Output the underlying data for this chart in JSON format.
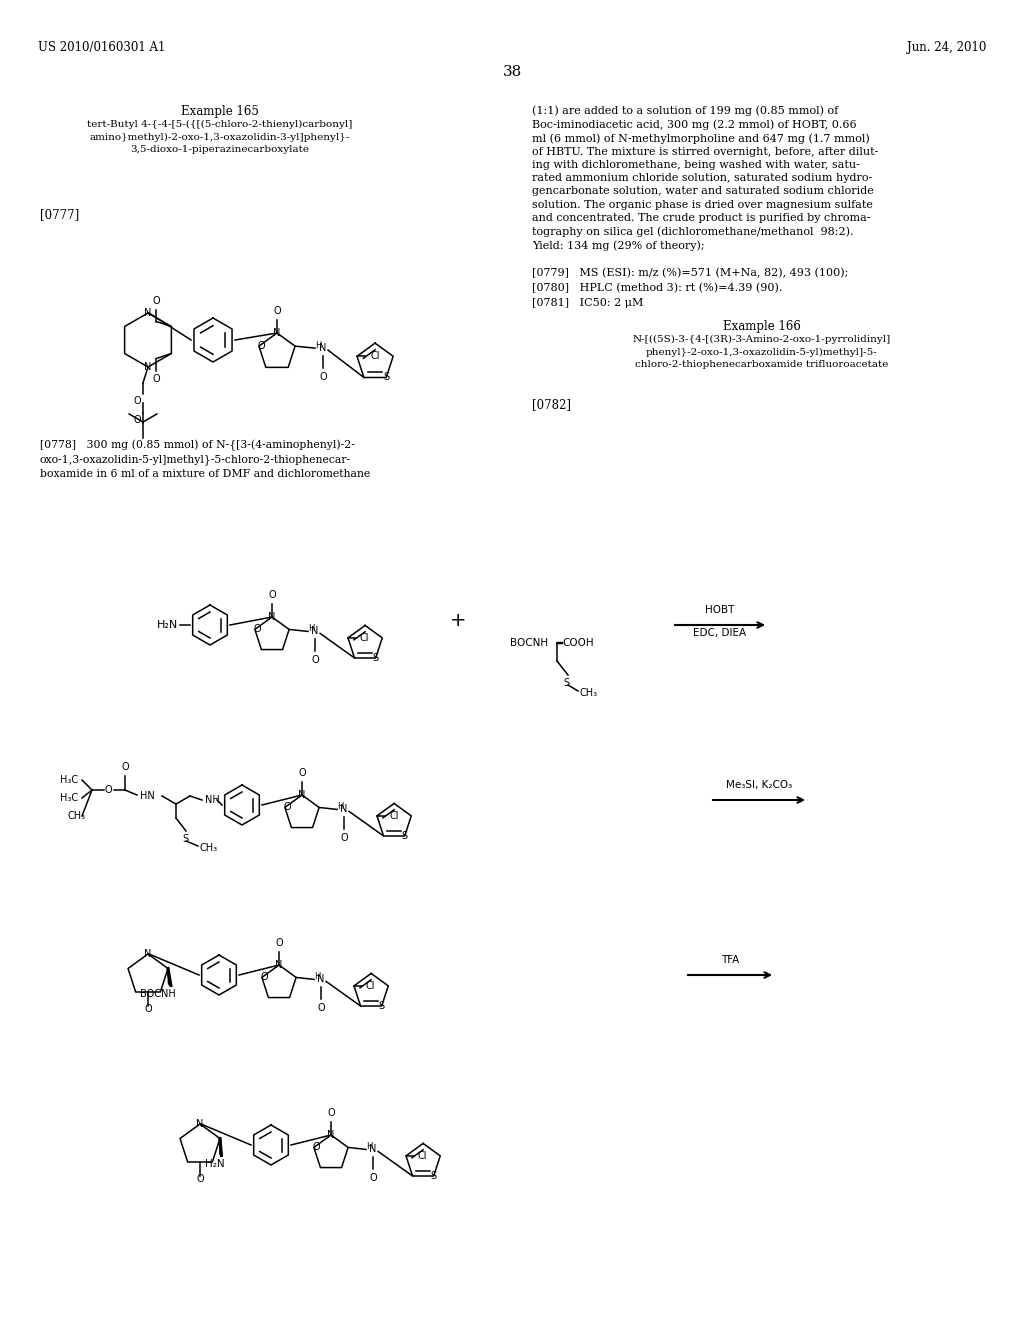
{
  "background_color": "#ffffff",
  "header_left": "US 2010/0160301 A1",
  "header_right": "Jun. 24, 2010",
  "page_number": "38",
  "example165_title": "Example 165",
  "example165_subtitle": "tert-Butyl 4-{-4-[5-({[(5-chloro-2-thienyl)carbonyl]\namino}methyl)-2-oxo-1,3-oxazolidin-3-yl]phenyl}-\n3,5-dioxo-1-piperazinecarboxylate",
  "p0777": "[0777]",
  "p0778": "[0778]   300 mg (0.85 mmol) of N-{[3-(4-aminophenyl)-2-\noxo-1,3-oxazolidin-5-yl]methyl}-5-chloro-2-thiophenecar-\nboxamide in 6 ml of a mixture of DMF and dichloromethane",
  "right_col_top": "(1:1) are added to a solution of 199 mg (0.85 mmol) of\nBoc-iminodiacetic acid, 300 mg (2.2 mmol) of HOBT, 0.66\nml (6 mmol) of N-methylmorpholine and 647 mg (1.7 mmol)\nof HBTU. The mixture is stirred overnight, before, after dilut-\ning with dichloromethane, being washed with water, satu-\nrated ammonium chloride solution, saturated sodium hydro-\ngencarbonate solution, water and saturated sodium chloride\nsolution. The organic phase is dried over magnesium sulfate\nand concentrated. The crude product is purified by chroma-\ntography on silica gel (dichloromethane/methanol  98:2).\nYield: 134 mg (29% of theory);",
  "p0779": "[0779]   MS (ESI): m/z (%)=571 (M+Na, 82), 493 (100);",
  "p0780": "[0780]   HPLC (method 3): rt (%)=4.39 (90).",
  "p0781": "[0781]   IC50: 2 μM",
  "example166_title": "Example 166",
  "example166_subtitle": "N-[((5S)-3-{4-[(3R)-3-Amino-2-oxo-1-pyrrolidinyl]\nphenyl}-2-oxo-1,3-oxazolidin-5-yl)methyl]-5-\nchloro-2-thiophenecarboxamide trifluoroacetate",
  "p0782": "[0782]",
  "arrow1_label_top": "HOBT",
  "arrow1_label_bot": "EDC, DIEA",
  "arrow2_label": "Me₃SI, K₂CO₃",
  "arrow3_label": "TFA"
}
